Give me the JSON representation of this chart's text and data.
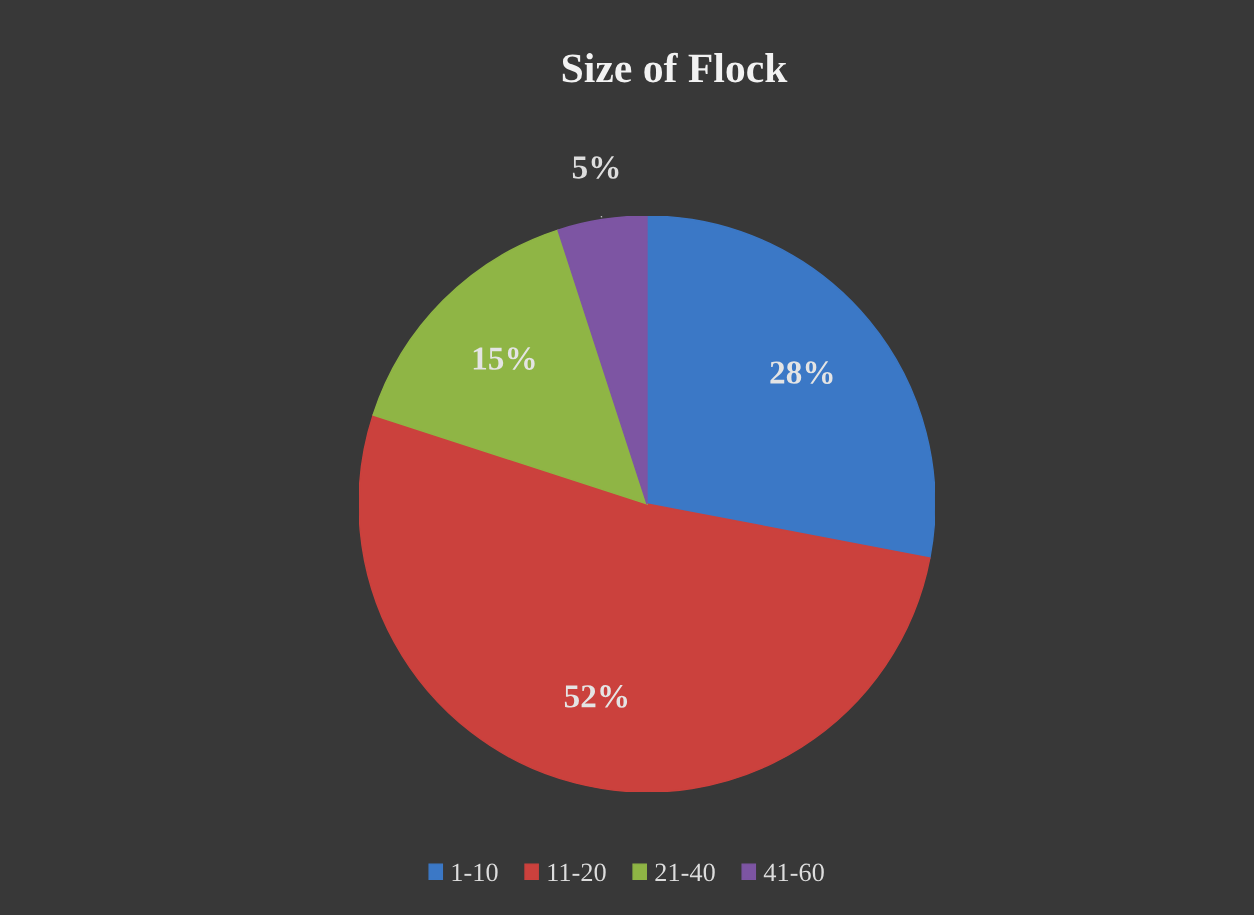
{
  "chart_data": {
    "type": "pie",
    "title": "Size of Flock",
    "categories": [
      "1-10",
      "11-20",
      "21-40",
      "41-60"
    ],
    "values": [
      28,
      52,
      15,
      5
    ],
    "colors": [
      "#3b78c6",
      "#cb413d",
      "#8fb545",
      "#7d55a3"
    ],
    "value_labels": [
      "28%",
      "52%",
      "15%",
      "5%"
    ],
    "legend": "bottom"
  }
}
